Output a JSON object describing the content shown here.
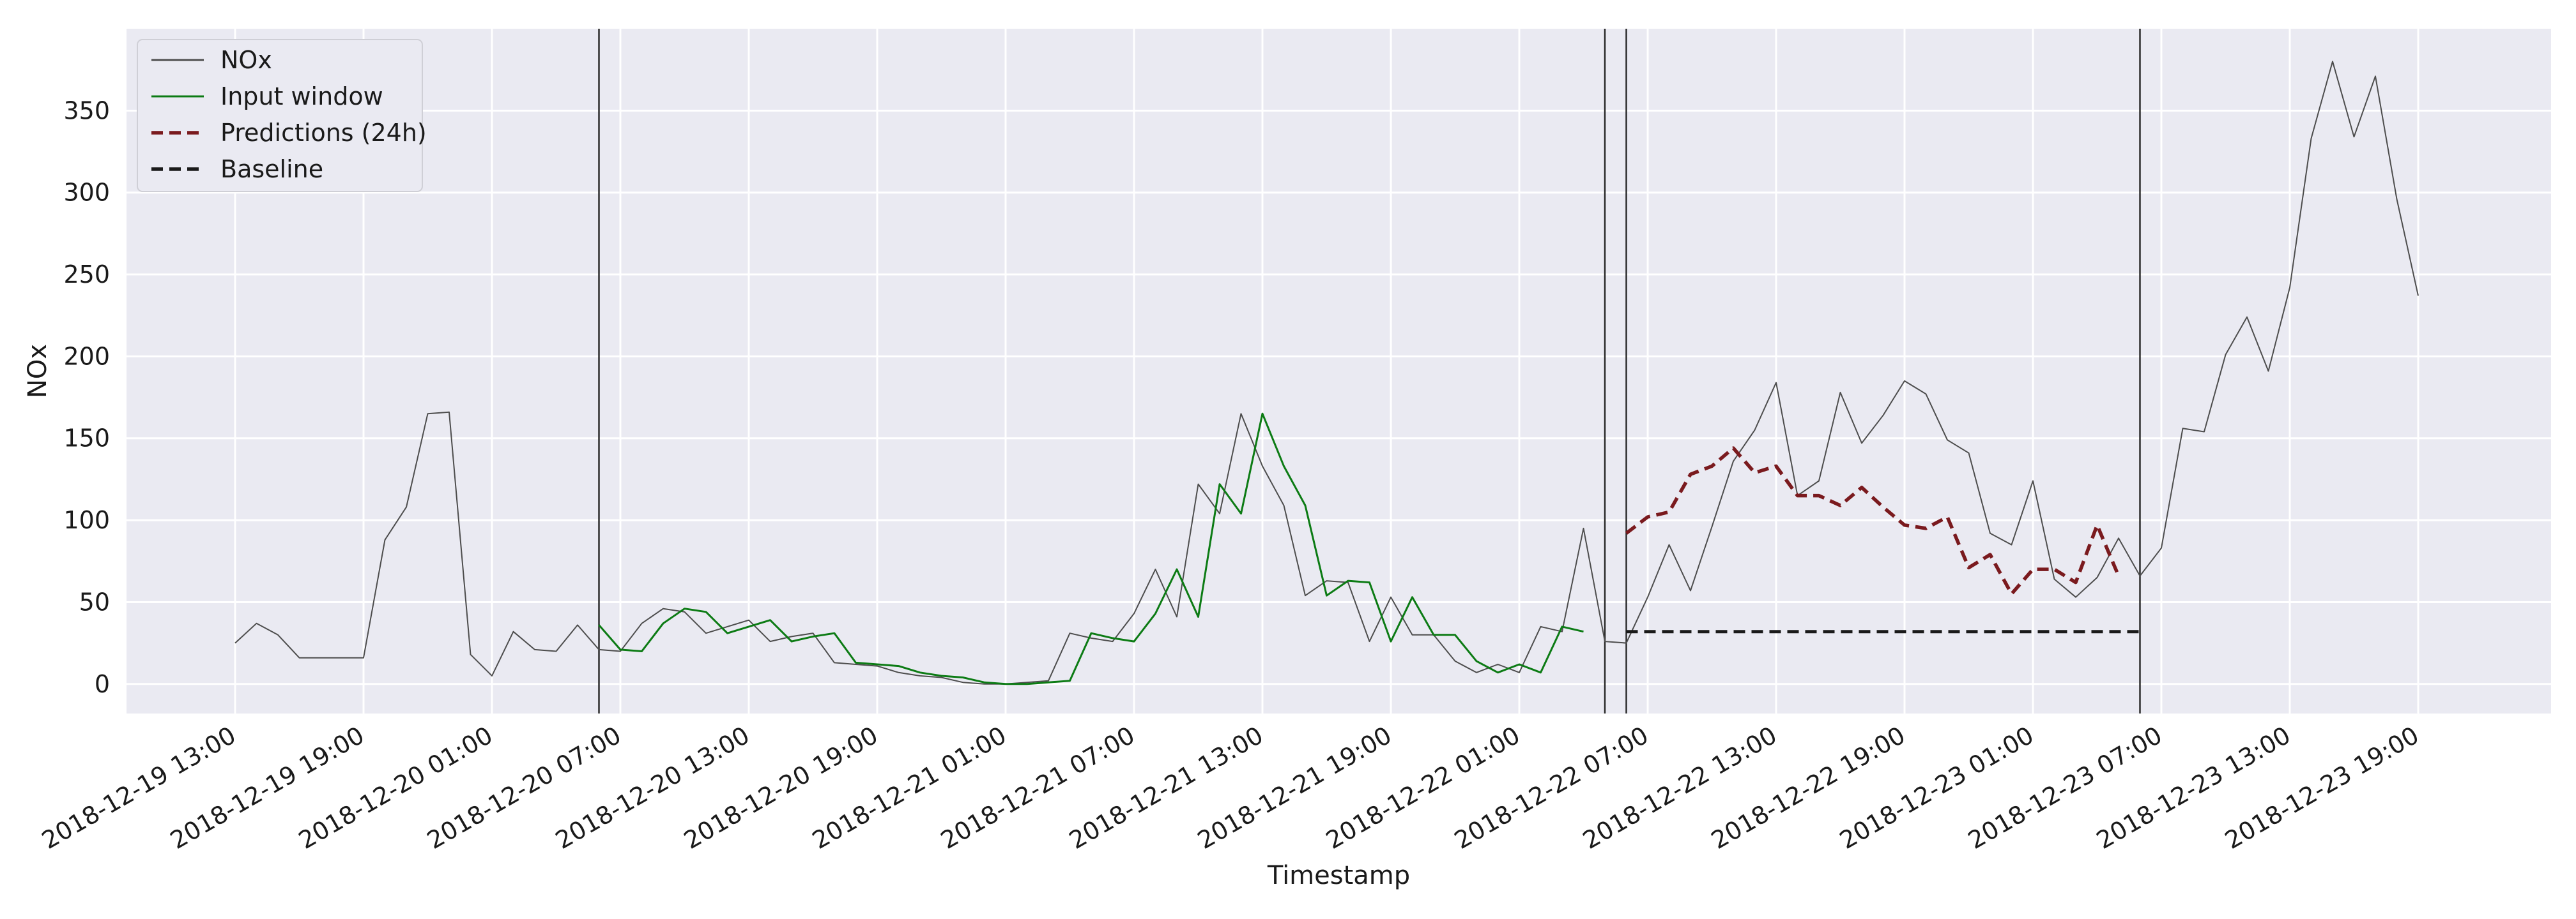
{
  "chart_data": {
    "type": "line",
    "title": "",
    "xlabel": "Timestamp",
    "ylabel": "NOx",
    "ylim": [
      -18,
      400
    ],
    "yticks": [
      0,
      50,
      100,
      150,
      200,
      250,
      300,
      350
    ],
    "x_start": "2018-12-19 13:00",
    "x_step_hours": 1,
    "xtick_labels": [
      "2018-12-19 13:00",
      "2018-12-19 19:00",
      "2018-12-20 01:00",
      "2018-12-20 07:00",
      "2018-12-20 13:00",
      "2018-12-20 19:00",
      "2018-12-21 01:00",
      "2018-12-21 07:00",
      "2018-12-21 13:00",
      "2018-12-21 19:00",
      "2018-12-22 01:00",
      "2018-12-22 07:00",
      "2018-12-22 13:00",
      "2018-12-22 19:00",
      "2018-12-23 01:00",
      "2018-12-23 07:00",
      "2018-12-23 13:00",
      "2018-12-23 19:00"
    ],
    "xlim_labels": [
      "2018-12-19 08:00",
      "2018-12-24 03:00"
    ],
    "vertical_lines": [
      "2018-12-20 06:00",
      "2018-12-22 05:00",
      "2018-12-22 06:00",
      "2018-12-23 06:00"
    ],
    "grid": true,
    "legend_position": "top-left",
    "series": [
      {
        "name": "NOx",
        "color": "#4d4d4d",
        "style": "solid",
        "x_range": [
          "2018-12-19 13:00",
          "2018-12-23 20:00"
        ],
        "values": [
          25,
          37,
          30,
          16,
          16,
          16,
          16,
          88,
          108,
          165,
          166,
          18,
          5,
          32,
          21,
          20,
          36,
          21,
          20,
          37,
          46,
          44,
          31,
          35,
          39,
          26,
          29,
          31,
          13,
          12,
          11,
          7,
          5,
          4,
          1,
          0,
          0,
          1,
          2,
          31,
          28,
          26,
          43,
          70,
          41,
          122,
          104,
          165,
          133,
          109,
          54,
          63,
          62,
          26,
          53,
          30,
          30,
          14,
          7,
          12,
          7,
          35,
          32,
          95,
          26,
          25,
          53,
          85,
          57,
          96,
          136,
          155,
          184,
          115,
          124,
          178,
          147,
          164,
          185,
          177,
          149,
          141,
          92,
          85,
          124,
          64,
          53,
          65,
          89,
          66,
          83,
          156,
          154,
          201,
          224,
          191,
          242,
          333,
          380,
          334,
          371,
          296,
          237
        ]
      },
      {
        "name": "Input window",
        "color": "#0c7b14",
        "style": "solid",
        "x_range": [
          "2018-12-20 06:00",
          "2018-12-22 05:00"
        ],
        "values": [
          36,
          21,
          20,
          37,
          46,
          44,
          31,
          35,
          39,
          26,
          29,
          31,
          13,
          12,
          11,
          7,
          5,
          4,
          1,
          0,
          0,
          1,
          2,
          31,
          28,
          26,
          43,
          70,
          41,
          122,
          104,
          165,
          133,
          109,
          54,
          63,
          62,
          26,
          53,
          30,
          30,
          14,
          7,
          12,
          7,
          35,
          32
        ]
      },
      {
        "name": "Predictions (24h)",
        "color": "#7a1a1e",
        "style": "dashed",
        "x_range": [
          "2018-12-22 06:00",
          "2018-12-23 06:00"
        ],
        "values": [
          92,
          102,
          105,
          128,
          133,
          144,
          129,
          133,
          115,
          115,
          109,
          120,
          108,
          97,
          95,
          102,
          71,
          79,
          55,
          70,
          70,
          62,
          97,
          66
        ]
      },
      {
        "name": "Baseline",
        "color": "#1a1a1a",
        "style": "dashed",
        "x_range": [
          "2018-12-22 06:00",
          "2018-12-23 06:00"
        ],
        "values": [
          32,
          32,
          32,
          32,
          32,
          32,
          32,
          32,
          32,
          32,
          32,
          32,
          32,
          32,
          32,
          32,
          32,
          32,
          32,
          32,
          32,
          32,
          32,
          32,
          32
        ]
      }
    ]
  }
}
